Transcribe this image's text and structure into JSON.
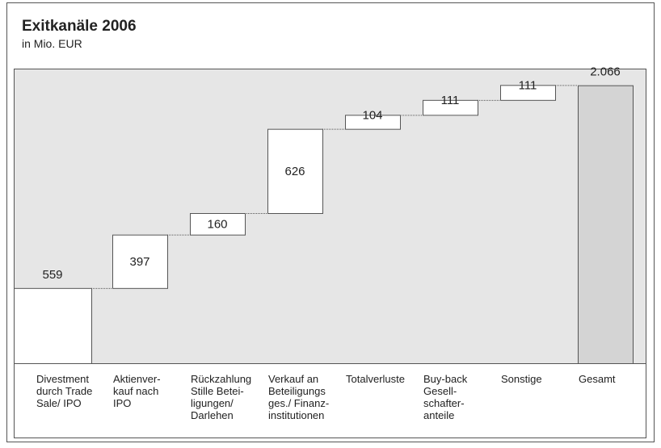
{
  "chart_data": {
    "type": "waterfall",
    "title": "Exitkanäle 2006",
    "subtitle": "in Mio. EUR",
    "categories": [
      "Divestment\ndurch Trade\nSale/ IPO",
      "Aktienver-\nkauf nach\nIPO",
      "Rückzahlung\nStille Betei-\nligungen/\nDarlehen",
      "Verkauf an\nBeteiligungs\nges./ Finanz-\ninstitutionen",
      "Totalverluste",
      "Buy-back\nGesell-\nschafter-\nanteile",
      "Sonstige",
      "Gesamt"
    ],
    "values": [
      559,
      397,
      160,
      626,
      104,
      111,
      111,
      2066
    ],
    "value_labels": [
      "559",
      "397",
      "160",
      "626",
      "104",
      "111",
      "111",
      "2.066"
    ],
    "color": "#ffffff",
    "total_color": "#d4d4d4",
    "ylim": [
      0,
      2190
    ]
  }
}
